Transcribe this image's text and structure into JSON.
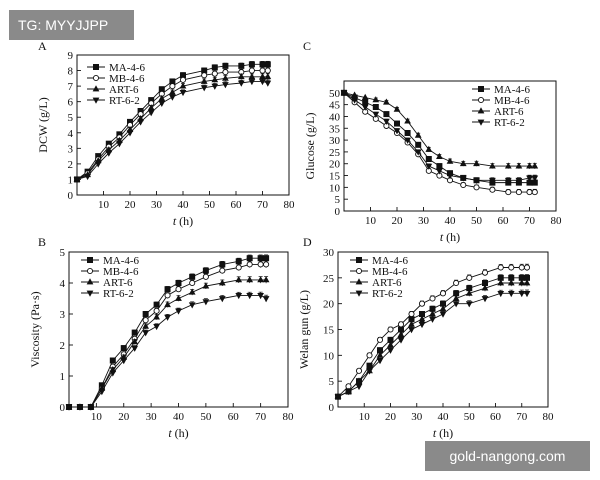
{
  "watermarks": {
    "top_left": "TG: MYYJJPP",
    "bottom_right": "gold-nangong.com"
  },
  "series_names": [
    "MA-4-6",
    "MB-4-6",
    "ART-6",
    "RT-6-2"
  ],
  "series_markers": [
    "square",
    "circle",
    "triangle",
    "triangle-down"
  ],
  "colors": {
    "ink": "#111111",
    "marker_fill": "#111111",
    "open_marker_fill": "#ffffff"
  },
  "chart_data": [
    {
      "panel": "A",
      "type": "line",
      "xlabel_italic": "t",
      "xlabel_unit": " (h)",
      "ylabel": "DCW (g/L)",
      "xlim": [
        0,
        80
      ],
      "ylim": [
        0,
        9
      ],
      "xticks": [
        10,
        20,
        30,
        40,
        50,
        60,
        70,
        80
      ],
      "yticks": [
        0,
        1,
        2,
        3,
        4,
        5,
        6,
        7,
        8,
        9
      ],
      "legend": "top-left",
      "x": [
        0,
        4,
        8,
        12,
        16,
        20,
        24,
        28,
        32,
        36,
        40,
        48,
        52,
        56,
        62,
        66,
        70,
        72
      ],
      "series": [
        {
          "name": "MA-4-6",
          "values": [
            1.0,
            1.5,
            2.5,
            3.3,
            3.9,
            4.7,
            5.4,
            6.1,
            6.8,
            7.3,
            7.7,
            8.0,
            8.2,
            8.3,
            8.3,
            8.4,
            8.4,
            8.4
          ]
        },
        {
          "name": "MB-4-6",
          "values": [
            1.0,
            1.4,
            2.3,
            3.1,
            3.7,
            4.5,
            5.2,
            5.9,
            6.5,
            7.0,
            7.4,
            7.7,
            7.8,
            7.9,
            7.9,
            8.0,
            8.0,
            8.0
          ]
        },
        {
          "name": "ART-6",
          "values": [
            1.0,
            1.3,
            2.2,
            2.9,
            3.5,
            4.2,
            4.9,
            5.6,
            6.2,
            6.6,
            7.0,
            7.3,
            7.4,
            7.5,
            7.6,
            7.6,
            7.6,
            7.6
          ]
        },
        {
          "name": "RT-6-2",
          "values": [
            1.0,
            1.2,
            2.0,
            2.7,
            3.3,
            4.0,
            4.7,
            5.3,
            5.9,
            6.3,
            6.6,
            6.9,
            7.0,
            7.1,
            7.2,
            7.3,
            7.3,
            7.2
          ]
        }
      ]
    },
    {
      "panel": "C",
      "type": "line",
      "xlabel_italic": "t",
      "xlabel_unit": " (h)",
      "ylabel": "Glucose (g/L)",
      "xlim": [
        0,
        80
      ],
      "ylim": [
        0,
        55
      ],
      "xticks": [
        10,
        20,
        30,
        40,
        50,
        60,
        70,
        80
      ],
      "yticks": [
        0,
        5,
        10,
        15,
        20,
        25,
        30,
        35,
        40,
        45,
        50
      ],
      "legend": "top-right",
      "x": [
        0,
        4,
        8,
        12,
        16,
        20,
        24,
        28,
        32,
        36,
        40,
        45,
        50,
        56,
        62,
        66,
        70,
        72
      ],
      "series": [
        {
          "name": "MA-4-6",
          "values": [
            50,
            48,
            46,
            44,
            41,
            37,
            33,
            28,
            22,
            19,
            16,
            14,
            13,
            12,
            12,
            12,
            12,
            12
          ]
        },
        {
          "name": "MB-4-6",
          "values": [
            50,
            46,
            42,
            39,
            36,
            33,
            29,
            24,
            17,
            15,
            13,
            11,
            10,
            9,
            8,
            8,
            8,
            8
          ]
        },
        {
          "name": "ART-6",
          "values": [
            50,
            49,
            48,
            47,
            46,
            43,
            38,
            32,
            26,
            23,
            21,
            20,
            20,
            19,
            19,
            19,
            19,
            19
          ]
        },
        {
          "name": "RT-6-2",
          "values": [
            50,
            47,
            44,
            41,
            38,
            34,
            30,
            25,
            19,
            17,
            15,
            14,
            13,
            13,
            13,
            13,
            14,
            14
          ]
        }
      ]
    },
    {
      "panel": "B",
      "type": "line",
      "xlabel_italic": "t",
      "xlabel_unit": " (h)",
      "ylabel": "Viscosity (Pa·s)",
      "xlim": [
        0,
        80
      ],
      "ylim": [
        0,
        5
      ],
      "xticks": [
        10,
        20,
        30,
        40,
        50,
        60,
        70,
        80
      ],
      "yticks": [
        0,
        1,
        2,
        3,
        4,
        5
      ],
      "legend": "top-left",
      "x": [
        0,
        4,
        8,
        12,
        16,
        20,
        24,
        28,
        32,
        36,
        40,
        45,
        50,
        56,
        62,
        66,
        70,
        72
      ],
      "series": [
        {
          "name": "MA-4-6",
          "values": [
            0,
            0,
            0,
            0.7,
            1.5,
            1.9,
            2.4,
            3.0,
            3.3,
            3.8,
            4.0,
            4.2,
            4.4,
            4.6,
            4.7,
            4.8,
            4.8,
            4.8
          ]
        },
        {
          "name": "MB-4-6",
          "values": [
            0,
            0,
            0,
            0.6,
            1.3,
            1.7,
            2.2,
            2.8,
            3.1,
            3.6,
            3.8,
            4.0,
            4.2,
            4.4,
            4.5,
            4.6,
            4.6,
            4.6
          ]
        },
        {
          "name": "ART-6",
          "values": [
            0,
            0,
            0,
            0.6,
            1.2,
            1.6,
            2.1,
            2.6,
            2.9,
            3.3,
            3.5,
            3.7,
            3.9,
            4.0,
            4.1,
            4.1,
            4.1,
            4.1
          ]
        },
        {
          "name": "RT-6-2",
          "values": [
            0,
            0,
            0,
            0.5,
            1.1,
            1.5,
            1.9,
            2.4,
            2.6,
            2.9,
            3.1,
            3.3,
            3.4,
            3.5,
            3.6,
            3.6,
            3.6,
            3.5
          ]
        }
      ]
    },
    {
      "panel": "D",
      "type": "line",
      "xlabel_italic": "t",
      "xlabel_unit": " (h)",
      "ylabel": "Welan gun (g/L)",
      "xlim": [
        0,
        80
      ],
      "ylim": [
        0,
        30
      ],
      "xticks": [
        10,
        20,
        30,
        40,
        50,
        60,
        70,
        80
      ],
      "yticks": [
        0,
        5,
        10,
        15,
        20,
        25,
        30
      ],
      "legend": "top-left",
      "x": [
        0,
        4,
        8,
        12,
        16,
        20,
        24,
        28,
        32,
        36,
        40,
        45,
        50,
        56,
        62,
        66,
        70,
        72
      ],
      "series": [
        {
          "name": "MA-4-6",
          "values": [
            2,
            3,
            5,
            8,
            11,
            13,
            15,
            17,
            18,
            19,
            20,
            22,
            23,
            24,
            25,
            25,
            25,
            25
          ]
        },
        {
          "name": "MB-4-6",
          "values": [
            2,
            4,
            7,
            10,
            13,
            15,
            16,
            18,
            20,
            21,
            22,
            24,
            25,
            26,
            27,
            27,
            27,
            27
          ]
        },
        {
          "name": "ART-6",
          "values": [
            2,
            3,
            5,
            7,
            10,
            12,
            14,
            16,
            17,
            18,
            19,
            21,
            22,
            23,
            24,
            24,
            24,
            24
          ]
        },
        {
          "name": "RT-6-2",
          "values": [
            2,
            3,
            4,
            7,
            9,
            11,
            13,
            15,
            16,
            17,
            18,
            20,
            20,
            21,
            22,
            22,
            22,
            22
          ]
        }
      ]
    }
  ]
}
